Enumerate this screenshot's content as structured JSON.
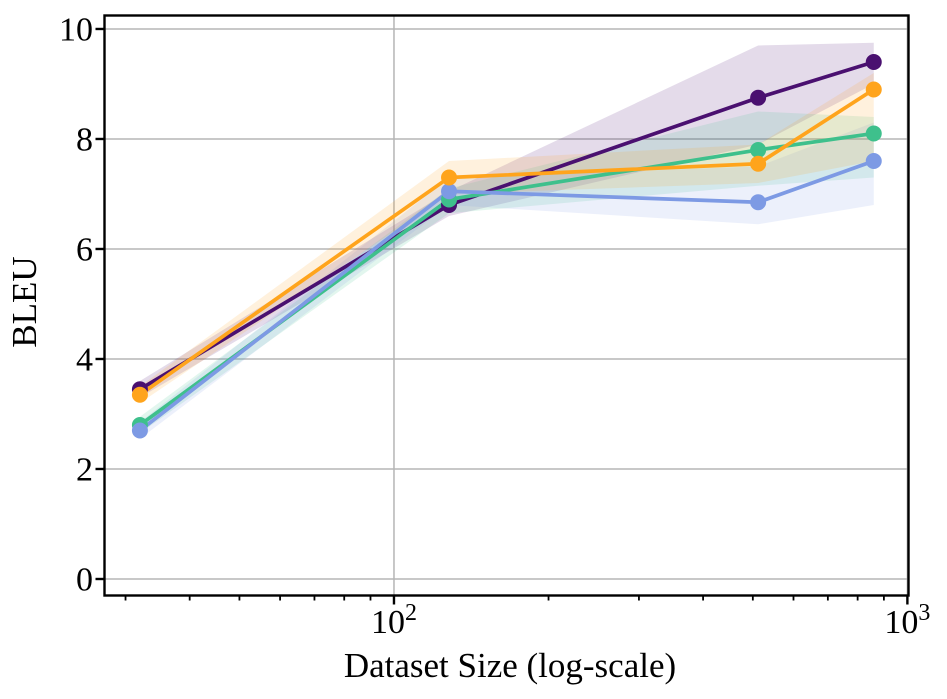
{
  "chart_data": {
    "type": "line",
    "title": "",
    "xlabel": "Dataset Size (log-scale)",
    "ylabel": "BLEU",
    "x_scale": "log",
    "xlim": [
      27.3,
      1005
    ],
    "ylim": [
      -0.3,
      10.245
    ],
    "grid": true,
    "legend_position": "none",
    "x": [
      32,
      128,
      512,
      860
    ],
    "series": [
      {
        "name": "purple-series",
        "color": "#4a1070",
        "values": [
          3.45,
          6.8,
          8.75,
          9.4
        ],
        "band_lower": [
          3.3,
          6.6,
          7.9,
          9.0
        ],
        "band_upper": [
          3.6,
          7.05,
          9.7,
          9.75
        ]
      },
      {
        "name": "green-series",
        "color": "#3ec08c",
        "values": [
          2.8,
          6.9,
          7.8,
          8.1
        ],
        "band_lower": [
          2.65,
          6.65,
          7.15,
          7.3
        ],
        "band_upper": [
          2.95,
          7.1,
          8.5,
          8.4
        ]
      },
      {
        "name": "blue-series",
        "color": "#7d9ae4",
        "values": [
          2.7,
          7.05,
          6.85,
          7.6
        ],
        "band_lower": [
          2.55,
          6.8,
          6.45,
          6.8
        ],
        "band_upper": [
          2.85,
          7.3,
          7.5,
          8.3
        ]
      },
      {
        "name": "orange-series",
        "color": "#ffa41c",
        "values": [
          3.35,
          7.3,
          7.55,
          8.9
        ],
        "band_lower": [
          3.2,
          7.0,
          7.2,
          7.6
        ],
        "band_upper": [
          3.5,
          7.6,
          7.9,
          9.2
        ]
      }
    ],
    "y_ticks": [
      {
        "label": "0",
        "value": 0
      },
      {
        "label": "2",
        "value": 2
      },
      {
        "label": "4",
        "value": 4
      },
      {
        "label": "6",
        "value": 6
      },
      {
        "label": "8",
        "value": 8
      },
      {
        "label": "10",
        "value": 10
      }
    ],
    "x_major_ticks": [
      {
        "base": "10",
        "exponent": "2",
        "value": 100
      },
      {
        "base": "10",
        "exponent": "3",
        "value": 1000
      }
    ],
    "x_minor_ticks": [
      30,
      40,
      50,
      60,
      70,
      80,
      90,
      200,
      300,
      400,
      500,
      600,
      700,
      800,
      900
    ],
    "style": {
      "grid_color": "#b5b5b5",
      "spine_color": "#000000",
      "background": "#ffffff",
      "band_opacity": 0.15,
      "line_width": 3.7,
      "marker_radius": 8
    }
  }
}
